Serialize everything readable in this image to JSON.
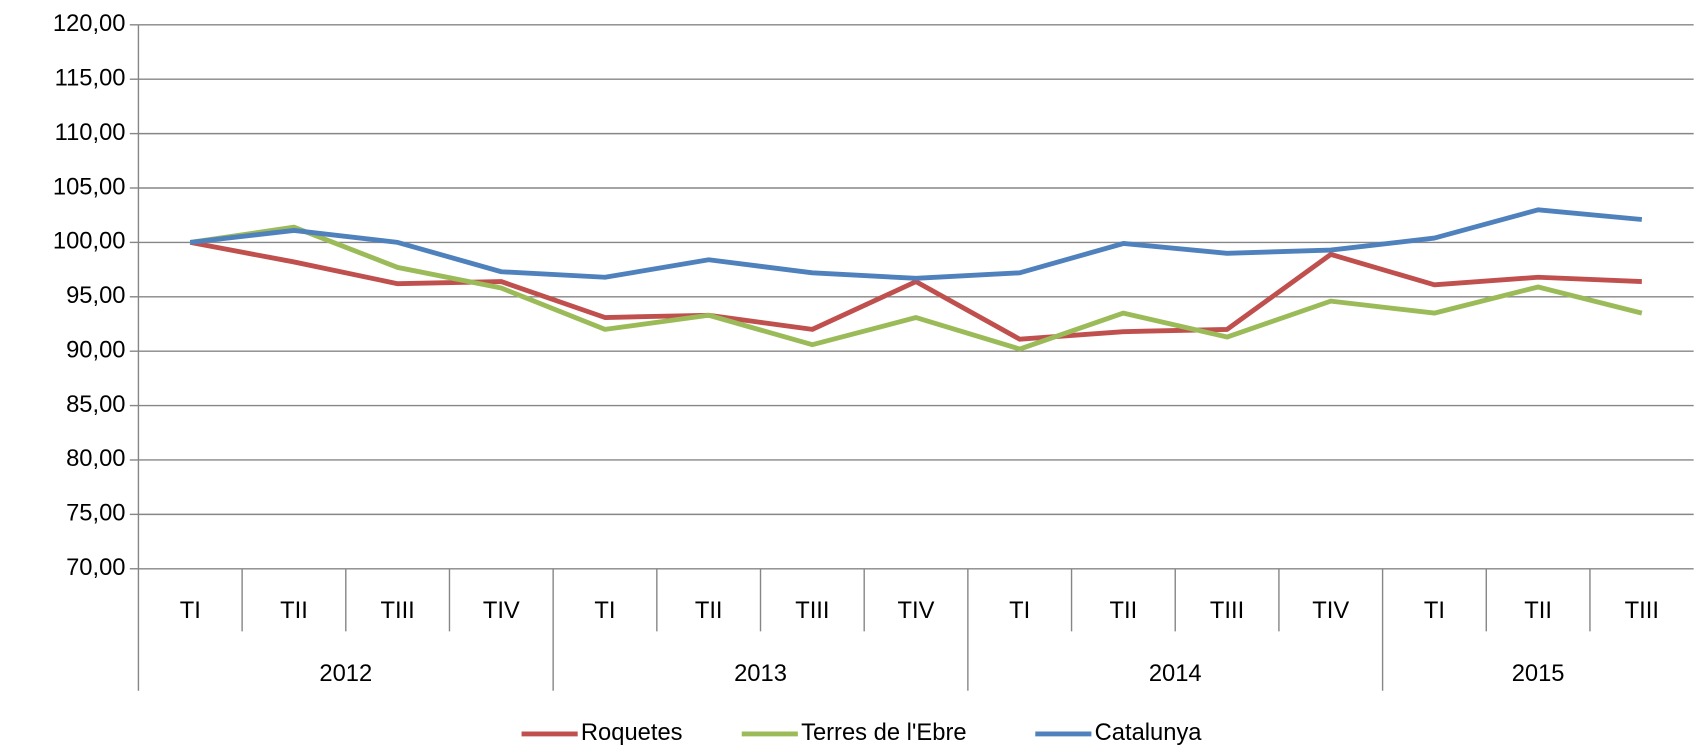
{
  "chart_data": {
    "type": "line",
    "groups": [
      {
        "name": "2012",
        "categories": [
          "TI",
          "TII",
          "TIII",
          "TIV"
        ]
      },
      {
        "name": "2013",
        "categories": [
          "TI",
          "TII",
          "TIII",
          "TIV"
        ]
      },
      {
        "name": "2014",
        "categories": [
          "TI",
          "TII",
          "TIII",
          "TIV"
        ]
      },
      {
        "name": "2015",
        "categories": [
          "TI",
          "TII",
          "TIII"
        ]
      }
    ],
    "series": [
      {
        "name": "Roquetes",
        "color": "#c0504d",
        "values": [
          100,
          98.2,
          96.2,
          96.4,
          93.1,
          93.3,
          92.0,
          96.4,
          91.1,
          91.8,
          92.0,
          98.9,
          96.1,
          96.8,
          96.4
        ]
      },
      {
        "name": "Terres de l'Ebre",
        "color": "#9bbb59",
        "values": [
          100,
          101.4,
          97.7,
          95.8,
          92.0,
          93.3,
          90.6,
          93.1,
          90.2,
          93.5,
          91.3,
          94.6,
          93.5,
          95.9,
          93.5
        ]
      },
      {
        "name": "Catalunya",
        "color": "#4f81bd",
        "values": [
          100,
          101.1,
          100.0,
          97.3,
          96.8,
          98.4,
          97.2,
          96.7,
          97.2,
          99.9,
          99.0,
          99.3,
          100.4,
          103.0,
          102.1
        ]
      }
    ],
    "ylim": [
      70,
      120
    ],
    "yticks": [
      {
        "value": 70,
        "label": "70,00"
      },
      {
        "value": 75,
        "label": "75,00"
      },
      {
        "value": 80,
        "label": "80,00"
      },
      {
        "value": 85,
        "label": "85,00"
      },
      {
        "value": 90,
        "label": "90,00"
      },
      {
        "value": 95,
        "label": "95,00"
      },
      {
        "value": 100,
        "label": "100,00"
      },
      {
        "value": 105,
        "label": "105,00"
      },
      {
        "value": 110,
        "label": "110,00"
      },
      {
        "value": 115,
        "label": "115,00"
      },
      {
        "value": 120,
        "label": "120,00"
      }
    ],
    "grid": true,
    "legend": "bottom"
  }
}
